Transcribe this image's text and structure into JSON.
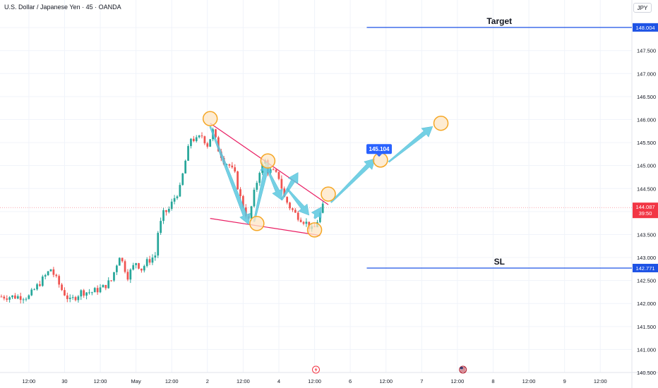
{
  "header": {
    "symbol": "U.S. Dollar / Japanese Yen · 45 · OANDA",
    "currency": "JPY"
  },
  "colors": {
    "up": "#26a69a",
    "down": "#ef5350",
    "level_line": "#1e53e5",
    "trend_line": "#e91e63",
    "arrow": "#5bc8e0",
    "marker_fill": "#fde6c4",
    "marker_stroke": "#f5a623",
    "current_price": "#f23645"
  },
  "chart_data": {
    "type": "candlestick",
    "title": "",
    "ylim": [
      140.5,
      148.6
    ],
    "y_ticks": [
      "148.000",
      "147.500",
      "147.000",
      "146.500",
      "146.000",
      "145.500",
      "145.000",
      "144.500",
      "144.000",
      "143.500",
      "143.000",
      "142.500",
      "142.000",
      "141.500",
      "141.000",
      "140.500"
    ],
    "x_ticks": [
      "12:00",
      "30",
      "12:00",
      "May",
      "12:00",
      "2",
      "12:00",
      "4",
      "12:00",
      "6",
      "12:00",
      "7",
      "12:00",
      "8",
      "12:00",
      "9",
      "12:00"
    ],
    "x_tick_pos": [
      0,
      13,
      26,
      39,
      52,
      65,
      78,
      91,
      104,
      117,
      130,
      143,
      156,
      169,
      182,
      195,
      208
    ],
    "x_range": [
      -10.5,
      219.5
    ],
    "price_path": [
      [
        0,
        142.15
      ],
      [
        4,
        142.45
      ],
      [
        8,
        142.75
      ],
      [
        12,
        142.3
      ],
      [
        15,
        142.05
      ],
      [
        19,
        142.25
      ],
      [
        23,
        142.25
      ],
      [
        27,
        142.35
      ],
      [
        30,
        142.5
      ],
      [
        33,
        143.05
      ],
      [
        36,
        142.6
      ],
      [
        39,
        142.9
      ],
      [
        41,
        142.75
      ],
      [
        43,
        142.9
      ],
      [
        46,
        143.05
      ],
      [
        47,
        143.55
      ],
      [
        49,
        143.95
      ],
      [
        51,
        144.05
      ],
      [
        53,
        144.3
      ],
      [
        55,
        144.5
      ],
      [
        57,
        145.1
      ],
      [
        59,
        145.6
      ],
      [
        61,
        145.55
      ],
      [
        63,
        145.65
      ],
      [
        65,
        145.45
      ],
      [
        67,
        145.75
      ],
      [
        69,
        145.35
      ],
      [
        71,
        145.1
      ],
      [
        73,
        145.0
      ],
      [
        75,
        144.8
      ],
      [
        77,
        144.3
      ],
      [
        79,
        143.95
      ],
      [
        80,
        143.8
      ],
      [
        82,
        144.4
      ],
      [
        84,
        144.9
      ],
      [
        86,
        145.1
      ],
      [
        87,
        144.9
      ],
      [
        89,
        144.85
      ],
      [
        91,
        144.75
      ],
      [
        93,
        144.3
      ],
      [
        95,
        144.1
      ],
      [
        97,
        143.95
      ],
      [
        99,
        143.85
      ],
      [
        101,
        143.75
      ],
      [
        103,
        143.6
      ],
      [
        104,
        143.65
      ],
      [
        105,
        143.8
      ],
      [
        107,
        144.1
      ]
    ],
    "candle_range": [
      -10,
      107
    ],
    "current_price": "144.087",
    "countdown": "39:50",
    "levels": [
      {
        "label": "Target",
        "price": 148.004,
        "tag": "148.004",
        "x_start": 123
      },
      {
        "label": "SL",
        "price": 142.771,
        "tag": "142.771",
        "x_start": 123
      }
    ],
    "trend_lines": [
      {
        "from": [
          66,
          145.92
        ],
        "to": [
          109,
          144.15
        ]
      },
      {
        "from": [
          66,
          143.85
        ],
        "to": [
          106,
          143.48
        ]
      }
    ],
    "markers": [
      {
        "x": 66,
        "price": 146.02
      },
      {
        "x": 83,
        "price": 143.74
      },
      {
        "x": 87,
        "price": 145.1
      },
      {
        "x": 104,
        "price": 143.6
      },
      {
        "x": 109,
        "price": 144.38
      },
      {
        "x": 128,
        "price": 145.12
      },
      {
        "x": 150,
        "price": 145.92
      }
    ],
    "arrows": [
      {
        "from": [
          66,
          145.85
        ],
        "to": [
          80,
          143.72
        ]
      },
      {
        "from": [
          82,
          143.78
        ],
        "to": [
          87,
          145.08
        ]
      },
      {
        "from": [
          87,
          144.9
        ],
        "to": [
          92,
          144.25
        ]
      },
      {
        "from": [
          92,
          144.25
        ],
        "to": [
          98,
          144.85
        ]
      },
      {
        "from": [
          94,
          144.5
        ],
        "to": [
          102,
          143.92
        ]
      },
      {
        "from": [
          104,
          143.85
        ],
        "to": [
          106.5,
          144.1
        ]
      },
      {
        "from": [
          110,
          144.2
        ],
        "to": [
          126,
          145.15
        ]
      },
      {
        "from": [
          131,
          145.08
        ],
        "to": [
          147,
          145.85
        ]
      }
    ],
    "callout": {
      "x": 127.5,
      "price": 145.36,
      "label": "145.104"
    },
    "event_icons": [
      {
        "x": 104.5,
        "name": "lightning-icon"
      },
      {
        "x": 158,
        "name": "us-flag-icon"
      }
    ]
  }
}
